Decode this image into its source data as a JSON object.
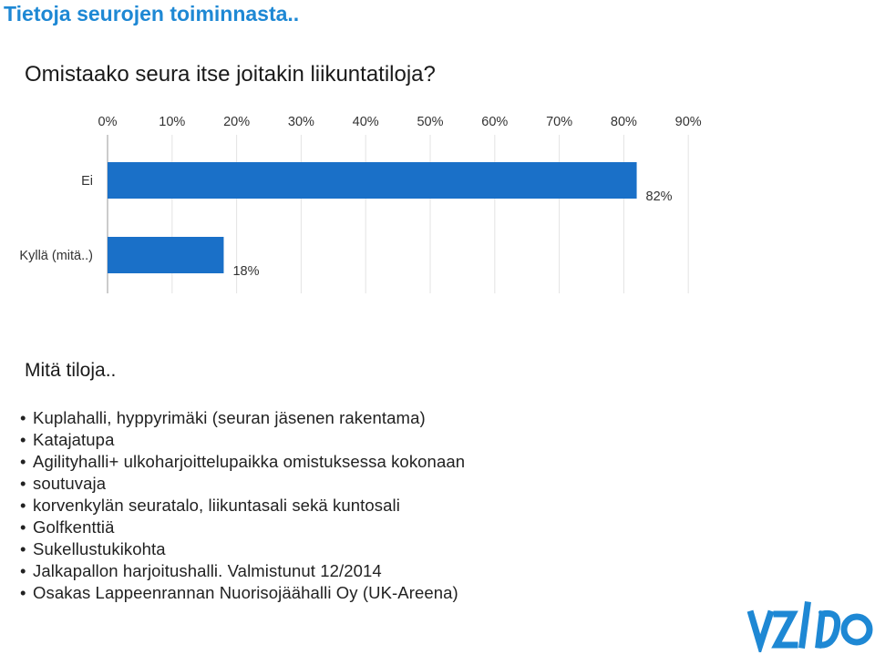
{
  "header": {
    "title": "Tietoja seurojen toiminnasta.."
  },
  "question": "Omistaako seura itse joitakin liikuntatiloja?",
  "chart_data": {
    "type": "bar",
    "orientation": "horizontal",
    "categories": [
      "Ei",
      "Kyllä (mitä..)"
    ],
    "values": [
      82,
      18
    ],
    "value_labels": [
      "82%",
      "18%"
    ],
    "xticks": [
      "0%",
      "10%",
      "20%",
      "30%",
      "40%",
      "50%",
      "60%",
      "70%",
      "80%",
      "90%"
    ],
    "xlim": [
      0,
      90
    ],
    "xaxis_position": "top",
    "grid": true,
    "legend": "none",
    "bar_color": "#1a70c8",
    "grid_color": "#e3e3e3"
  },
  "subheading": "Mitä tiloja..",
  "facilities": [
    "Kuplahalli, hyppyrimäki (seuran jäsenen rakentama)",
    "Katajatupa",
    "Agilityhalli+ ulkoharjoittelupaikka omistuksessa kokonaan",
    "soutuvaja",
    "korvenkylän seuratalo, liikuntasali sekä kuntosali",
    "Golfkenttiä",
    "Sukellustukikohta",
    "Jalkapallon harjoitushalli. Valmistunut 12/2014",
    "Osakas Lappeenrannan Nuorisojäähalli Oy (UK-Areena)"
  ],
  "logo": {
    "icon": "valo-logo",
    "color": "#1e88d4"
  }
}
